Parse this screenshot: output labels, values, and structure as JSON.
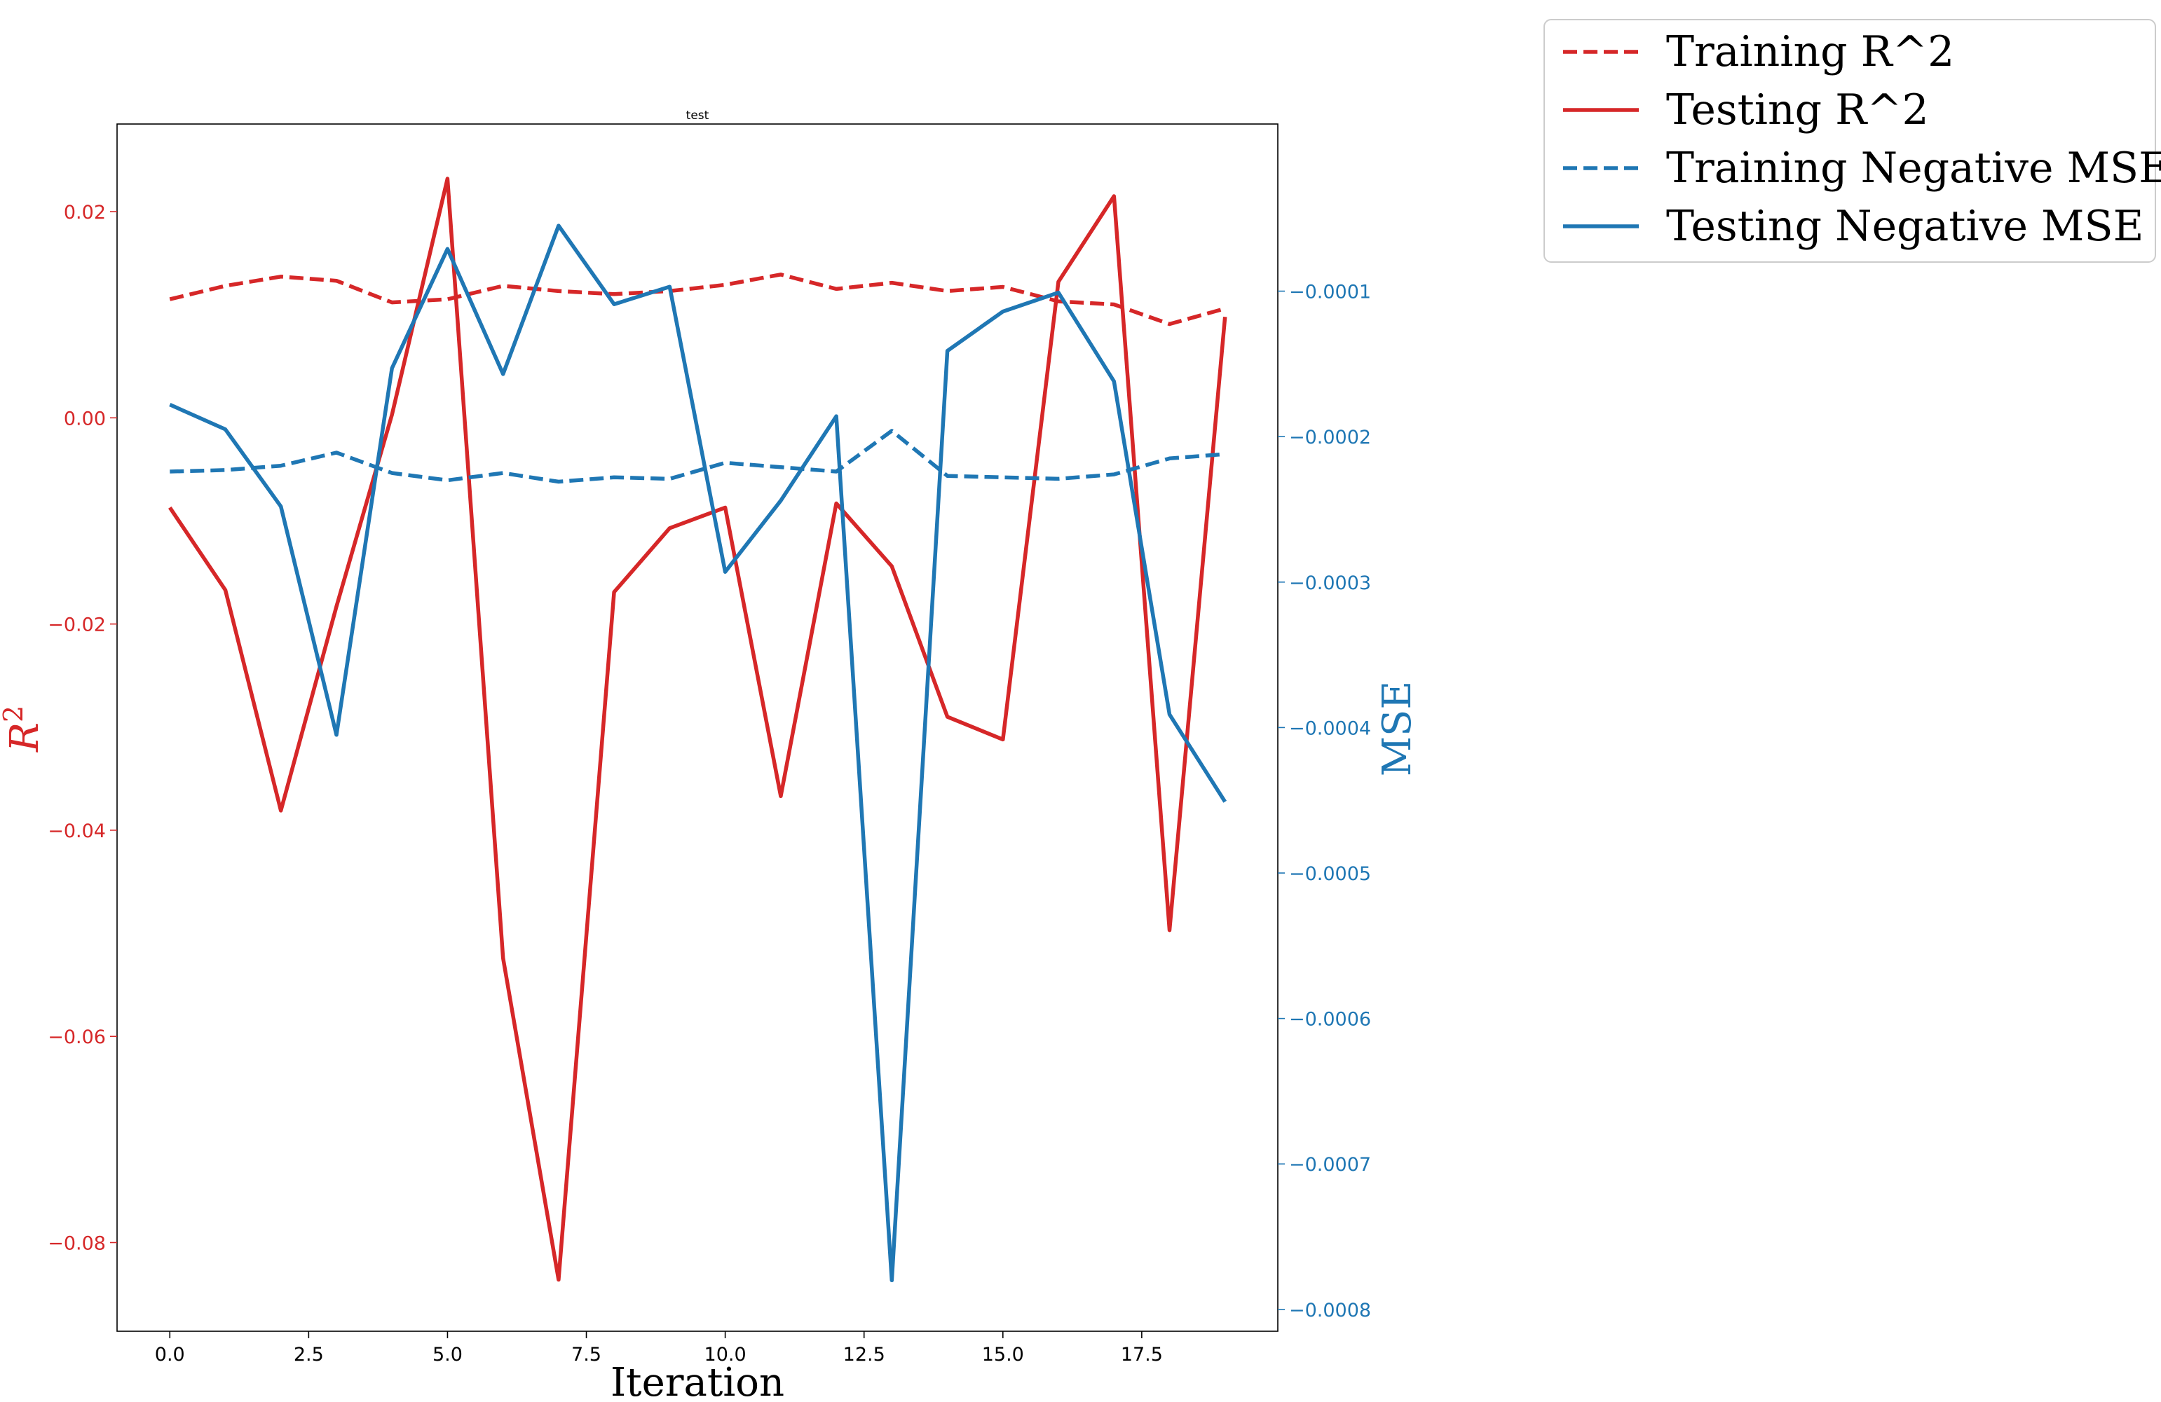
{
  "chart_data": {
    "type": "line",
    "title": "test",
    "xlabel": "Iteration",
    "ylabel_left": "R",
    "ylabel_left_superscript": "2",
    "ylabel_right": "MSE",
    "x": [
      0,
      1,
      2,
      3,
      4,
      5,
      6,
      7,
      8,
      9,
      10,
      11,
      12,
      13,
      14,
      15,
      16,
      17,
      18,
      19
    ],
    "xlim": [
      -0.95,
      19.95
    ],
    "ylim_left": [
      -0.0886,
      0.0285
    ],
    "ylim_right": [
      -0.000815,
      1.49e-05
    ],
    "x_ticks": [
      0.0,
      2.5,
      5.0,
      7.5,
      10.0,
      12.5,
      15.0,
      17.5
    ],
    "x_tick_labels": [
      "0.0",
      "2.5",
      "5.0",
      "7.5",
      "10.0",
      "12.5",
      "15.0",
      "17.5"
    ],
    "y_left_ticks": [
      0.02,
      0.0,
      -0.02,
      -0.04,
      -0.06,
      -0.08
    ],
    "y_left_tick_labels": [
      "0.02",
      "0.00",
      "−0.02",
      "−0.04",
      "−0.06",
      "−0.08"
    ],
    "y_right_ticks": [
      -0.0001,
      -0.0002,
      -0.0003,
      -0.0004,
      -0.0005,
      -0.0006,
      -0.0007,
      -0.0008
    ],
    "y_right_tick_labels": [
      "−0.0001",
      "−0.0002",
      "−0.0003",
      "−0.0004",
      "−0.0005",
      "−0.0006",
      "−0.0007",
      "−0.0008"
    ],
    "grid": false,
    "legend_placement": "outside top-right",
    "series": [
      {
        "name": "Training R^2",
        "axis": "left",
        "style": "dashed",
        "color": "#d62728",
        "values": [
          0.0115,
          0.0128,
          0.0137,
          0.0133,
          0.0112,
          0.0115,
          0.0128,
          0.0123,
          0.012,
          0.0123,
          0.0129,
          0.0139,
          0.0125,
          0.0131,
          0.0123,
          0.0127,
          0.0113,
          0.011,
          0.0091,
          0.0106
        ]
      },
      {
        "name": "Testing R^2",
        "axis": "left",
        "style": "solid",
        "color": "#d62728",
        "values": [
          -0.0087,
          -0.0167,
          -0.0381,
          -0.0183,
          0.0003,
          0.0232,
          -0.0524,
          -0.0836,
          -0.0169,
          -0.0107,
          -0.0087,
          -0.0367,
          -0.0083,
          -0.0144,
          -0.029,
          -0.0312,
          0.0132,
          0.0215,
          -0.0497,
          0.0098
        ]
      },
      {
        "name": "Training Negative MSE",
        "axis": "right",
        "style": "dashed",
        "color": "#1f77b4",
        "values": [
          -0.000224,
          -0.000223,
          -0.00022,
          -0.000211,
          -0.000225,
          -0.00023,
          -0.000225,
          -0.000231,
          -0.000228,
          -0.000229,
          -0.000218,
          -0.000221,
          -0.000224,
          -0.000196,
          -0.000227,
          -0.000228,
          -0.000229,
          -0.000226,
          -0.000215,
          -0.000212
        ]
      },
      {
        "name": "Testing Negative MSE",
        "axis": "right",
        "style": "solid",
        "color": "#1f77b4",
        "values": [
          -0.000178,
          -0.000195,
          -0.000248,
          -0.000405,
          -0.000153,
          -7.1e-05,
          -0.000157,
          -5.5e-05,
          -0.000109,
          -9.7e-05,
          -0.000293,
          -0.000244,
          -0.000186,
          -0.00078,
          -0.000141,
          -0.000114,
          -0.000101,
          -0.000162,
          -0.000391,
          -0.000451
        ]
      }
    ]
  }
}
